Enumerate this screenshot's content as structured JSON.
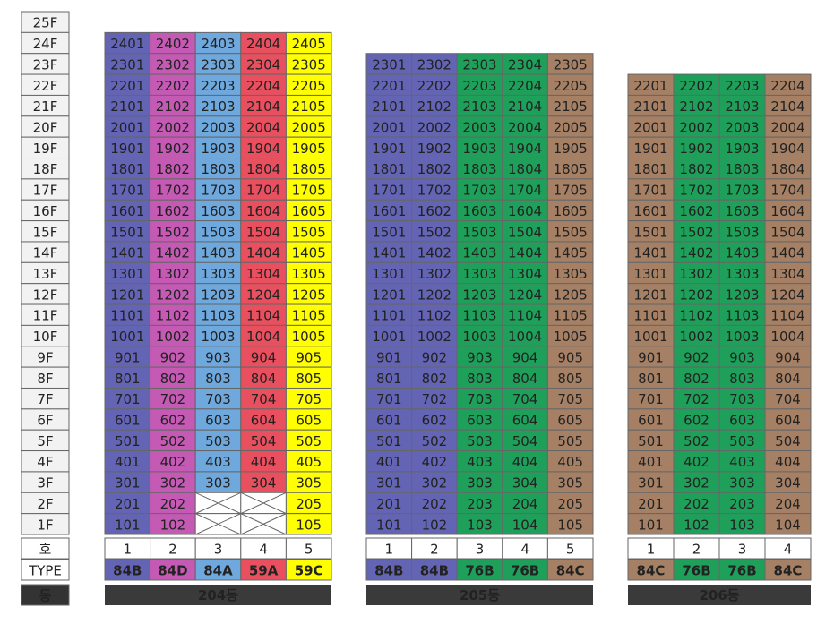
{
  "floors": [
    "25F",
    "24F",
    "23F",
    "22F",
    "21F",
    "20F",
    "19F",
    "18F",
    "17F",
    "16F",
    "15F",
    "14F",
    "13F",
    "12F",
    "11F",
    "10F",
    "9F",
    "8F",
    "7F",
    "6F",
    "5F",
    "4F",
    "3F",
    "2F",
    "1F"
  ],
  "ho_label": "호",
  "type_label": "TYPE",
  "dong_label": "동",
  "buildings": [
    {
      "name": "204동",
      "units": [
        "1",
        "2",
        "3",
        "4",
        "5"
      ],
      "types": [
        "84B",
        "84D",
        "84A",
        "59A",
        "59C"
      ],
      "rows": [
        [
          "2401",
          "2402",
          "2403",
          "2404",
          "2405"
        ],
        [
          "2301",
          "2302",
          "2303",
          "2304",
          "2305"
        ],
        [
          "2201",
          "2202",
          "2203",
          "2204",
          "2205"
        ],
        [
          "2101",
          "2102",
          "2103",
          "2104",
          "2105"
        ],
        [
          "2001",
          "2002",
          "2003",
          "2004",
          "2005"
        ],
        [
          "1901",
          "1902",
          "1903",
          "1904",
          "1905"
        ],
        [
          "1801",
          "1802",
          "1803",
          "1804",
          "1805"
        ],
        [
          "1701",
          "1702",
          "1703",
          "1704",
          "1705"
        ],
        [
          "1601",
          "1602",
          "1603",
          "1604",
          "1605"
        ],
        [
          "1501",
          "1502",
          "1503",
          "1504",
          "1505"
        ],
        [
          "1401",
          "1402",
          "1403",
          "1404",
          "1405"
        ],
        [
          "1301",
          "1302",
          "1303",
          "1304",
          "1305"
        ],
        [
          "1201",
          "1202",
          "1203",
          "1204",
          "1205"
        ],
        [
          "1101",
          "1102",
          "1103",
          "1104",
          "1105"
        ],
        [
          "1001",
          "1002",
          "1003",
          "1004",
          "1005"
        ],
        [
          "901",
          "902",
          "903",
          "904",
          "905"
        ],
        [
          "801",
          "802",
          "803",
          "804",
          "805"
        ],
        [
          "701",
          "702",
          "703",
          "704",
          "705"
        ],
        [
          "601",
          "602",
          "603",
          "604",
          "605"
        ],
        [
          "501",
          "502",
          "503",
          "504",
          "505"
        ],
        [
          "401",
          "402",
          "403",
          "404",
          "405"
        ],
        [
          "301",
          "302",
          "303",
          "304",
          "305"
        ],
        [
          "201",
          "202",
          null,
          null,
          "205"
        ],
        [
          "101",
          "102",
          null,
          null,
          "105"
        ]
      ]
    },
    {
      "name": "205동",
      "units": [
        "1",
        "2",
        "3",
        "4",
        "5"
      ],
      "types": [
        "84B",
        "84B",
        "76B",
        "76B",
        "84C"
      ],
      "rows": [
        [
          "2301",
          "2302",
          "2303",
          "2304",
          "2305"
        ],
        [
          "2201",
          "2202",
          "2203",
          "2204",
          "2205"
        ],
        [
          "2101",
          "2102",
          "2103",
          "2104",
          "2105"
        ],
        [
          "2001",
          "2002",
          "2003",
          "2004",
          "2005"
        ],
        [
          "1901",
          "1902",
          "1903",
          "1904",
          "1905"
        ],
        [
          "1801",
          "1802",
          "1803",
          "1804",
          "1805"
        ],
        [
          "1701",
          "1702",
          "1703",
          "1704",
          "1705"
        ],
        [
          "1601",
          "1602",
          "1603",
          "1604",
          "1605"
        ],
        [
          "1501",
          "1502",
          "1503",
          "1504",
          "1505"
        ],
        [
          "1401",
          "1402",
          "1403",
          "1404",
          "1405"
        ],
        [
          "1301",
          "1302",
          "1303",
          "1304",
          "1305"
        ],
        [
          "1201",
          "1202",
          "1203",
          "1204",
          "1205"
        ],
        [
          "1101",
          "1102",
          "1103",
          "1104",
          "1105"
        ],
        [
          "1001",
          "1002",
          "1003",
          "1004",
          "1005"
        ],
        [
          "901",
          "902",
          "903",
          "904",
          "905"
        ],
        [
          "801",
          "802",
          "803",
          "804",
          "805"
        ],
        [
          "701",
          "702",
          "703",
          "704",
          "705"
        ],
        [
          "601",
          "602",
          "603",
          "604",
          "605"
        ],
        [
          "501",
          "502",
          "503",
          "504",
          "505"
        ],
        [
          "401",
          "402",
          "403",
          "404",
          "405"
        ],
        [
          "301",
          "302",
          "303",
          "304",
          "305"
        ],
        [
          "201",
          "202",
          "203",
          "204",
          "205"
        ],
        [
          "101",
          "102",
          "103",
          "104",
          "105"
        ]
      ]
    },
    {
      "name": "206동",
      "units": [
        "1",
        "2",
        "3",
        "4"
      ],
      "types": [
        "84C",
        "76B",
        "76B",
        "84C"
      ],
      "rows": [
        [
          "2201",
          "2202",
          "2203",
          "2204"
        ],
        [
          "2101",
          "2102",
          "2103",
          "2104"
        ],
        [
          "2001",
          "2002",
          "2003",
          "2004"
        ],
        [
          "1901",
          "1902",
          "1903",
          "1904"
        ],
        [
          "1801",
          "1802",
          "1803",
          "1804"
        ],
        [
          "1701",
          "1702",
          "1703",
          "1704"
        ],
        [
          "1601",
          "1602",
          "1603",
          "1604"
        ],
        [
          "1501",
          "1502",
          "1503",
          "1504"
        ],
        [
          "1401",
          "1402",
          "1403",
          "1404"
        ],
        [
          "1301",
          "1302",
          "1303",
          "1304"
        ],
        [
          "1201",
          "1202",
          "1203",
          "1204"
        ],
        [
          "1101",
          "1102",
          "1103",
          "1104"
        ],
        [
          "1001",
          "1002",
          "1003",
          "1004"
        ],
        [
          "901",
          "902",
          "903",
          "904"
        ],
        [
          "801",
          "802",
          "803",
          "804"
        ],
        [
          "701",
          "702",
          "703",
          "704"
        ],
        [
          "601",
          "602",
          "603",
          "604"
        ],
        [
          "501",
          "502",
          "503",
          "504"
        ],
        [
          "401",
          "402",
          "403",
          "404"
        ],
        [
          "301",
          "302",
          "303",
          "304"
        ],
        [
          "201",
          "202",
          "203",
          "204"
        ],
        [
          "101",
          "102",
          "103",
          "104"
        ]
      ]
    }
  ]
}
